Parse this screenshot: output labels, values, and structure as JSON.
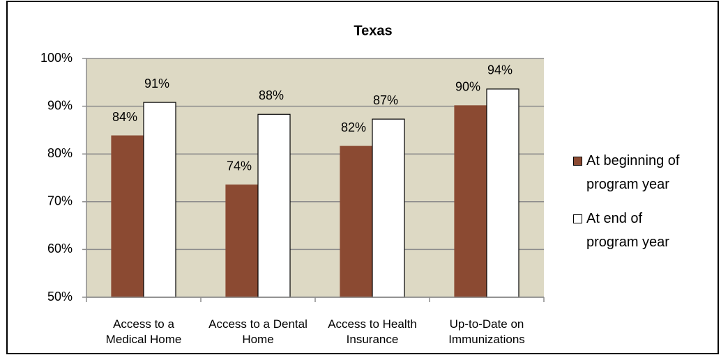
{
  "chart_data": {
    "type": "bar",
    "title": "Texas",
    "categories": [
      "Access to a Medical Home",
      "Access to a Dental Home",
      "Access to Health Insurance",
      "Up-to-Date on Immunizations"
    ],
    "series": [
      {
        "name": "At beginning of program year",
        "color": "#8b4a32",
        "values": [
          83.8,
          73.5,
          81.6,
          90.1
        ],
        "value_labels": [
          "84%",
          "74%",
          "82%",
          "90%"
        ]
      },
      {
        "name": "At end of program year",
        "color": "#ffffff",
        "values": [
          90.8,
          88.3,
          87.3,
          93.6
        ],
        "value_labels": [
          "91%",
          "88%",
          "87%",
          "94%"
        ]
      }
    ],
    "ylim": [
      50,
      100
    ],
    "yticks": [
      {
        "value": 50,
        "label": "50%"
      },
      {
        "value": 60,
        "label": "60%"
      },
      {
        "value": 70,
        "label": "70%"
      },
      {
        "value": 80,
        "label": "80%"
      },
      {
        "value": 90,
        "label": "90%"
      },
      {
        "value": 100,
        "label": "100%"
      }
    ],
    "grid": true,
    "legend": "right"
  }
}
